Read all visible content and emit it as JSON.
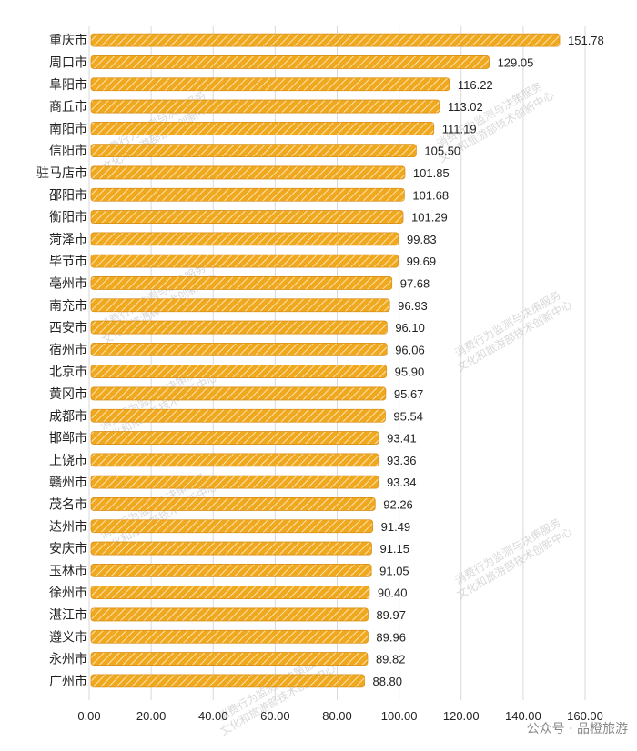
{
  "chart_data": {
    "type": "bar",
    "orientation": "horizontal",
    "title": "",
    "xlabel": "",
    "ylabel": "",
    "categories": [
      "重庆市",
      "周口市",
      "阜阳市",
      "商丘市",
      "南阳市",
      "信阳市",
      "驻马店市",
      "邵阳市",
      "衡阳市",
      "菏泽市",
      "毕节市",
      "亳州市",
      "南充市",
      "西安市",
      "宿州市",
      "北京市",
      "黄冈市",
      "成都市",
      "邯郸市",
      "上饶市",
      "赣州市",
      "茂名市",
      "达州市",
      "安庆市",
      "玉林市",
      "徐州市",
      "湛江市",
      "遵义市",
      "永州市",
      "广州市"
    ],
    "values": [
      151.78,
      129.05,
      116.22,
      113.02,
      111.19,
      105.5,
      101.85,
      101.68,
      101.29,
      99.83,
      99.69,
      97.68,
      96.93,
      96.1,
      96.06,
      95.9,
      95.67,
      95.54,
      93.41,
      93.36,
      93.34,
      92.26,
      91.49,
      91.15,
      91.05,
      90.4,
      89.97,
      89.96,
      89.82,
      88.8
    ],
    "value_labels": [
      "151.78",
      "129.05",
      "116.22",
      "113.02",
      "111.19",
      "105.50",
      "101.85",
      "101.68",
      "101.29",
      "99.83",
      "99.69",
      "97.68",
      "96.93",
      "96.10",
      "96.06",
      "95.90",
      "95.67",
      "95.54",
      "93.41",
      "93.36",
      "93.34",
      "92.26",
      "91.49",
      "91.15",
      "91.05",
      "90.40",
      "89.97",
      "89.96",
      "89.82",
      "88.80"
    ],
    "xlim": [
      0,
      160
    ],
    "x_ticks": [
      "0.00",
      "20.00",
      "40.00",
      "60.00",
      "80.00",
      "100.00",
      "120.00",
      "140.00",
      "160.00"
    ],
    "grid": true,
    "legend": "none",
    "bar_color": "#F0A81E",
    "bar_pattern": "diagonal-hatch",
    "grid_color": "#d9d9d9"
  },
  "watermark": {
    "lines": [
      "消费行为监测与决策服务",
      "文化和旅游部技术创新中心"
    ],
    "corner_text": "公众号 · 品橙旅游"
  }
}
